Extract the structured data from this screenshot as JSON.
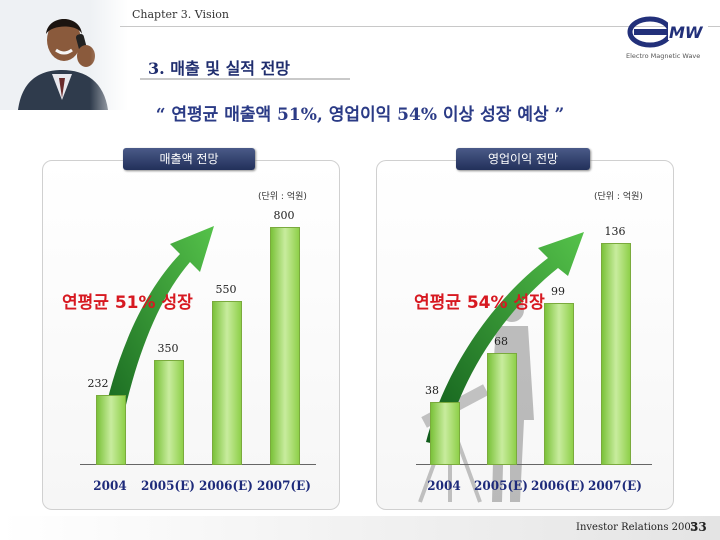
{
  "header": {
    "chapter": "Chapter 3. Vision",
    "section_title": "3. 매출 및 실적 전망",
    "logo_text": "MW",
    "logo_sub": "Electro Magnetic Wave"
  },
  "headline": "“ 연평균 매출액 51%, 영업이익 54% 이상 성장 예상 ”",
  "left_panel": {
    "tag": "매출액 전망",
    "unit": "(단위 : 억원)",
    "growth_label": "연평균 51% 성장"
  },
  "right_panel": {
    "tag": "영업이익 전망",
    "unit": "(단위 : 억원)",
    "growth_label": "연평균 54% 성장"
  },
  "chart_data": [
    {
      "type": "bar",
      "categories": [
        "2004",
        "2005(E)",
        "2006(E)",
        "2007(E)"
      ],
      "values": [
        232,
        350,
        550,
        800
      ],
      "ylabel": "(단위 : 억원)",
      "annotation": "연평균 51% 성장"
    },
    {
      "type": "bar",
      "categories": [
        "2004",
        "2005(E)",
        "2006(E)",
        "2007(E)"
      ],
      "values": [
        38,
        68,
        99,
        136
      ],
      "ylabel": "(단위 : 억원)",
      "annotation": "연평균 54% 성장"
    }
  ],
  "footer": {
    "text": "Investor Relations 2005",
    "page": "33"
  },
  "colors": {
    "accent_blue": "#1f2d6e",
    "bar_green": "#8fd04a",
    "growth_red": "#d71921",
    "arrow_green": "#2e8b2e"
  }
}
